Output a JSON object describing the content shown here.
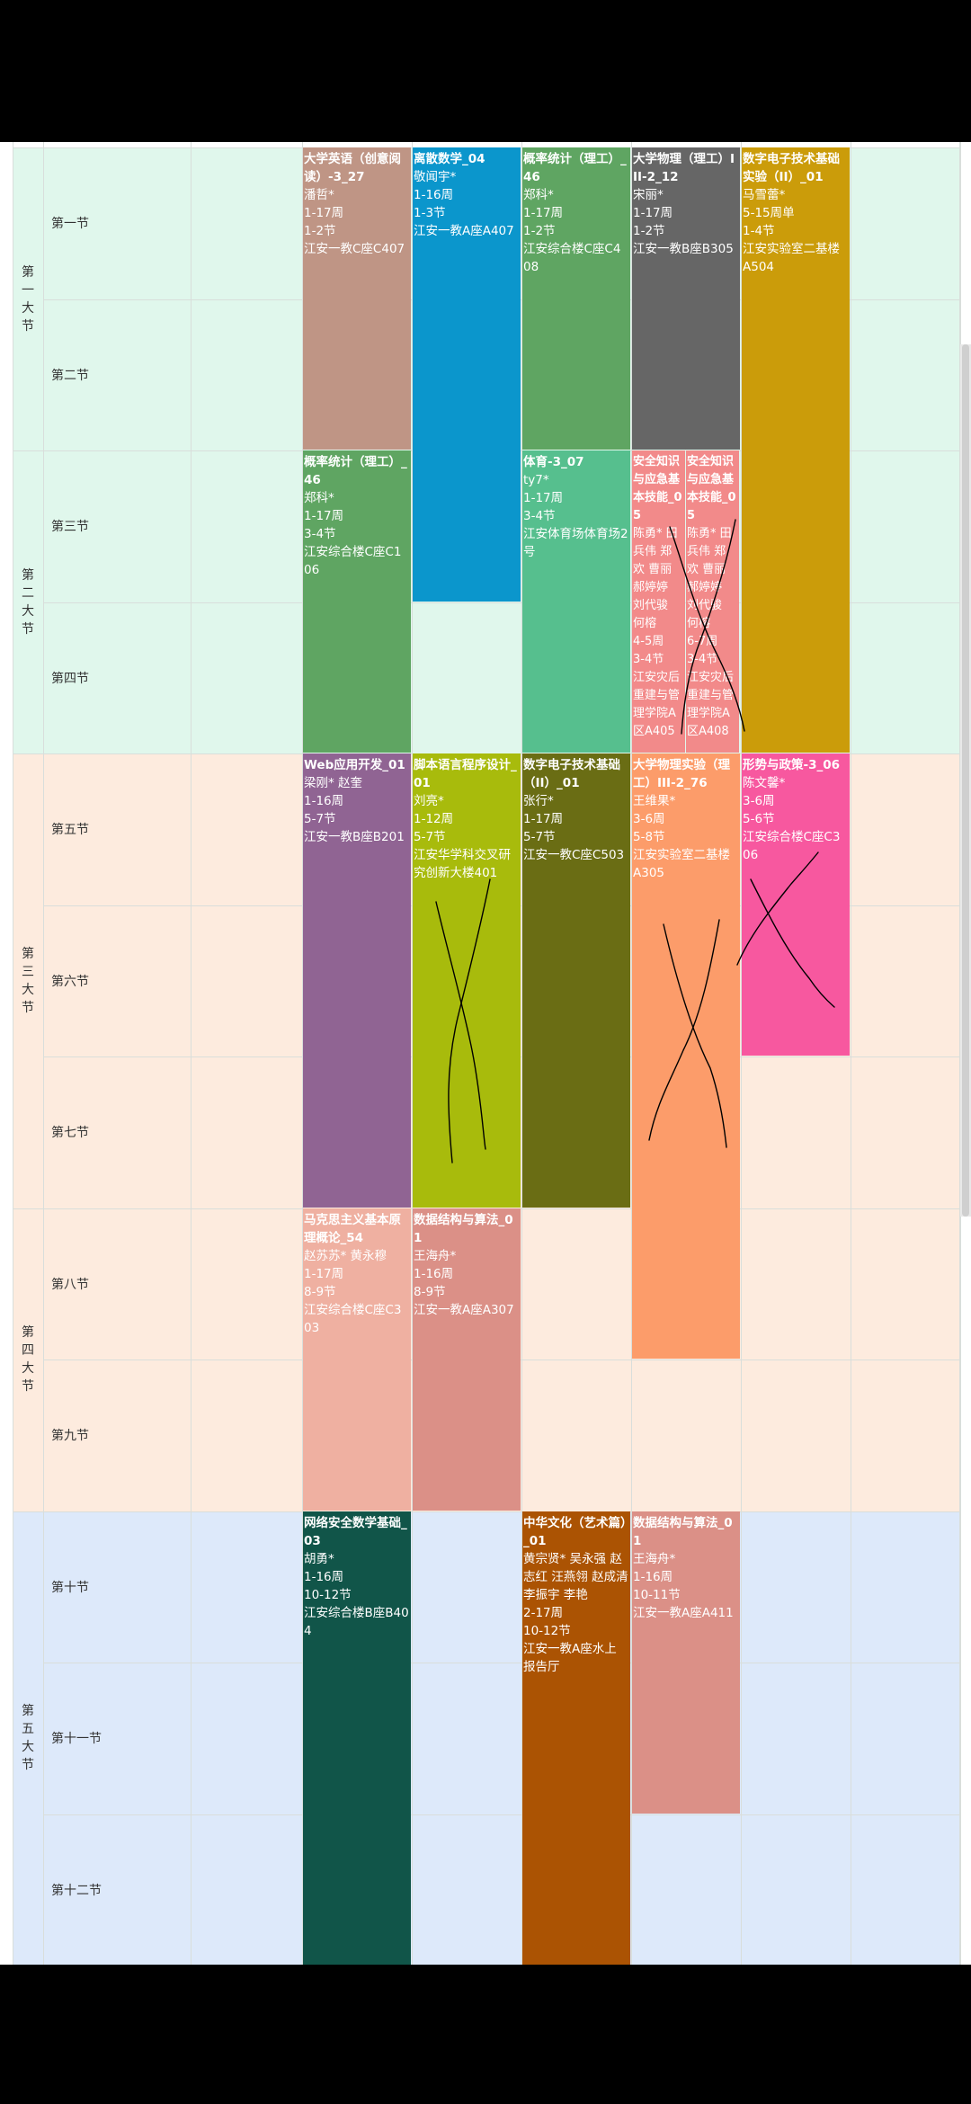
{
  "schedule": {
    "big_sections": [
      {
        "chars": [
          "第",
          "一",
          "大",
          "节"
        ],
        "color": "#e0f7ec"
      },
      {
        "chars": [
          "第",
          "二",
          "大",
          "节"
        ],
        "color": "#e0f7ec"
      },
      {
        "chars": [
          "第",
          "三",
          "大",
          "节"
        ],
        "color": "#fdebde"
      },
      {
        "chars": [
          "第",
          "四",
          "大",
          "节"
        ],
        "color": "#fdebde"
      },
      {
        "chars": [
          "第",
          "五",
          "大",
          "节"
        ],
        "color": "#dde9fa"
      }
    ],
    "periods": [
      "第一节",
      "第二节",
      "第三节",
      "第四节",
      "第五节",
      "第六节",
      "第七节",
      "第八节",
      "第九节",
      "第十节",
      "第十一节",
      "第十二节"
    ],
    "courses": [
      {
        "day": 0,
        "start": 1,
        "end": 2,
        "color": "#bf9585",
        "name": "大学英语（创意阅读）-3_27",
        "teacher": "潘哲*",
        "weeks": "1-17周",
        "periods": "1-2节",
        "room": "江安一教C座C407"
      },
      {
        "day": 0,
        "start": 3,
        "end": 4,
        "color": "#5fa562",
        "name": "概率统计（理工）_46",
        "teacher": "郑科*",
        "weeks": "1-17周",
        "periods": "3-4节",
        "room": "江安综合楼C座C106"
      },
      {
        "day": 0,
        "start": 5,
        "end": 7,
        "color": "#906493",
        "name": "Web应用开发_01",
        "teacher": "梁刚* 赵奎",
        "weeks": "1-16周",
        "periods": "5-7节",
        "room": "江安一教B座B201"
      },
      {
        "day": 0,
        "start": 8,
        "end": 9,
        "color": "#efb0a1",
        "name": "马克思主义基本原理概论_54",
        "teacher": "赵苏苏* 黄永穆",
        "weeks": "1-17周",
        "periods": "8-9节",
        "room": "江安综合楼C座C303"
      },
      {
        "day": 0,
        "start": 10,
        "end": 12,
        "color": "#115549",
        "name": "网络安全数学基础_03",
        "teacher": "胡勇*",
        "weeks": "1-16周",
        "periods": "10-12节",
        "room": "江安综合楼B座B404"
      },
      {
        "day": 1,
        "start": 1,
        "end": 3,
        "color": "#0b96cc",
        "name": "离散数学_04",
        "teacher": "敬闻宇*",
        "weeks": "1-16周",
        "periods": "1-3节",
        "room": "江安一教A座A407"
      },
      {
        "day": 1,
        "start": 5,
        "end": 7,
        "color": "#a8bb0c",
        "name": "脚本语言程序设计_01",
        "teacher": "刘亮*",
        "weeks": "1-12周",
        "periods": "5-7节",
        "room": "江安华学科交叉研究创新大楼401"
      },
      {
        "day": 1,
        "start": 8,
        "end": 9,
        "color": "#db9087",
        "name": "数据结构与算法_01",
        "teacher": "王海舟*",
        "weeks": "1-16周",
        "periods": "8-9节",
        "room": "江安一教A座A307"
      },
      {
        "day": 2,
        "start": 1,
        "end": 2,
        "color": "#5fa562",
        "name": "概率统计（理工）_46",
        "teacher": "郑科*",
        "weeks": "1-17周",
        "periods": "1-2节",
        "room": "江安综合楼C座C408"
      },
      {
        "day": 2,
        "start": 3,
        "end": 4,
        "color": "#56bf8e",
        "name": "体育-3_07",
        "teacher": "ty7*",
        "weeks": "1-17周",
        "periods": "3-4节",
        "room": "江安体育场体育场2号"
      },
      {
        "day": 2,
        "start": 5,
        "end": 7,
        "color": "#6a6d14",
        "name": "数字电子技术基础（II）_01",
        "teacher": "张行*",
        "weeks": "1-17周",
        "periods": "5-7节",
        "room": "江安一教C座C503"
      },
      {
        "day": 2,
        "start": 10,
        "end": 12,
        "color": "#ab5303",
        "name": "中华文化（艺术篇）_01",
        "teacher": "黄宗贤* 吴永强 赵志红 汪燕翎 赵成清 李振宇 李艳",
        "weeks": "2-17周",
        "periods": "10-12节",
        "room": "江安一教A座水上报告厅"
      },
      {
        "day": 3,
        "start": 1,
        "end": 2,
        "color": "#666666",
        "name": "大学物理（理工）III-2_12",
        "teacher": "宋丽*",
        "weeks": "1-17周",
        "periods": "1-2节",
        "room": "江安一教B座B305"
      },
      {
        "day": 3,
        "start": 3,
        "end": 4,
        "half": "left",
        "color": "#f28a8a",
        "name": "安全知识与应急基本技能_05",
        "teacher": "陈勇* 田兵伟 郑欢 曹丽 郝婷婷 刘代骏 何榕",
        "weeks": "4-5周",
        "periods": "3-4节",
        "room": "江安灾后重建与管理学院A区A405"
      },
      {
        "day": 3,
        "start": 3,
        "end": 4,
        "half": "right",
        "color": "#f28a8a",
        "name": "安全知识与应急基本技能_05",
        "teacher": "陈勇* 田兵伟 郑欢 曹丽 郝婷婷 刘代骏 何榕",
        "weeks": "6-7周",
        "periods": "3-4节",
        "room": "江安灾后重建与管理学院A区A408"
      },
      {
        "day": 3,
        "start": 5,
        "end": 8,
        "color": "#fc9c6a",
        "name": "大学物理实验（理工）III-2_76",
        "teacher": "王维果*",
        "weeks": "3-6周",
        "periods": "5-8节",
        "room": "江安实验室二基楼A305"
      },
      {
        "day": 3,
        "start": 10,
        "end": 11,
        "color": "#db9087",
        "name": "数据结构与算法_01",
        "teacher": "王海舟*",
        "weeks": "1-16周",
        "periods": "10-11节",
        "room": "江安一教A座A411"
      },
      {
        "day": 4,
        "start": 1,
        "end": 4,
        "color": "#cb9c0a",
        "name": "数字电子技术基础实验（II）_01",
        "teacher": "马雪蕾*",
        "weeks": "5-15周单",
        "periods": "1-4节",
        "room": "江安实验室二基楼A504"
      },
      {
        "day": 4,
        "start": 5,
        "end": 6,
        "color": "#f7589f",
        "name": "形势与政策-3_06",
        "teacher": "陈文馨*",
        "weeks": "3-6周",
        "periods": "5-6节",
        "room": "江安综合楼C座C306"
      }
    ]
  },
  "colors": {
    "background_black": "#000000",
    "grid_line": "#d9dedb",
    "scribble": "#000000"
  }
}
